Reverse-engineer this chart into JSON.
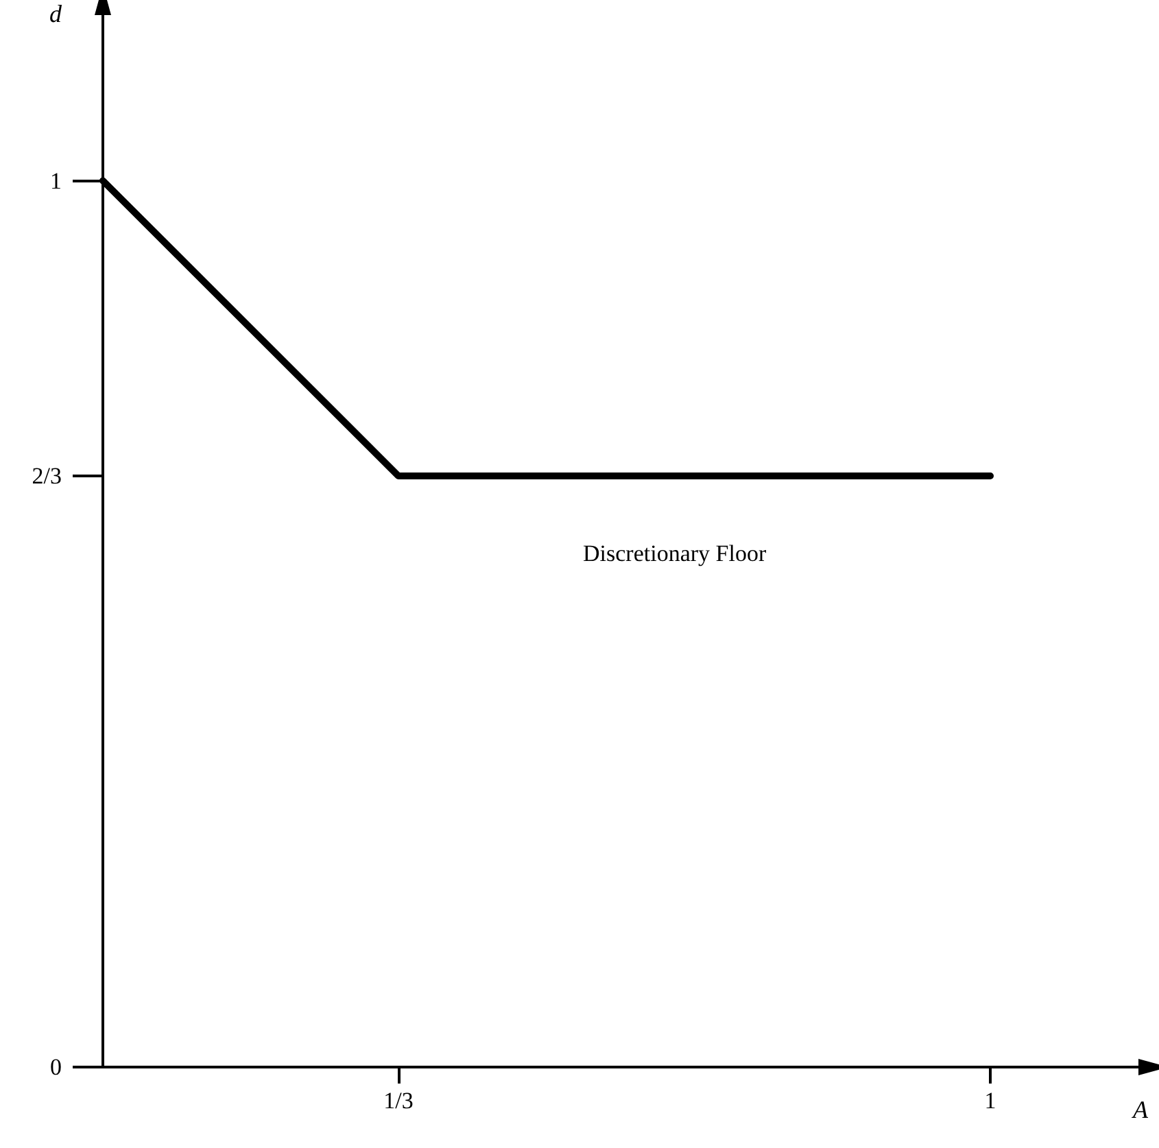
{
  "chart_data": {
    "type": "line",
    "xlabel": "A",
    "ylabel": "d",
    "x": [
      0,
      0.333,
      1
    ],
    "values": [
      1,
      0.667,
      0.667
    ],
    "color": "#000000",
    "xlim": [
      0,
      1.17
    ],
    "ylim": [
      0,
      1.19
    ],
    "xticks": [
      {
        "value": 0.333,
        "label": "1/3"
      },
      1
    ],
    "yticks": [
      0,
      {
        "value": 0.667,
        "label": "2/3"
      },
      1
    ],
    "annotations": [
      "Discretionary Floor"
    ],
    "grid": false,
    "marker": "none",
    "line_style": "solid"
  }
}
